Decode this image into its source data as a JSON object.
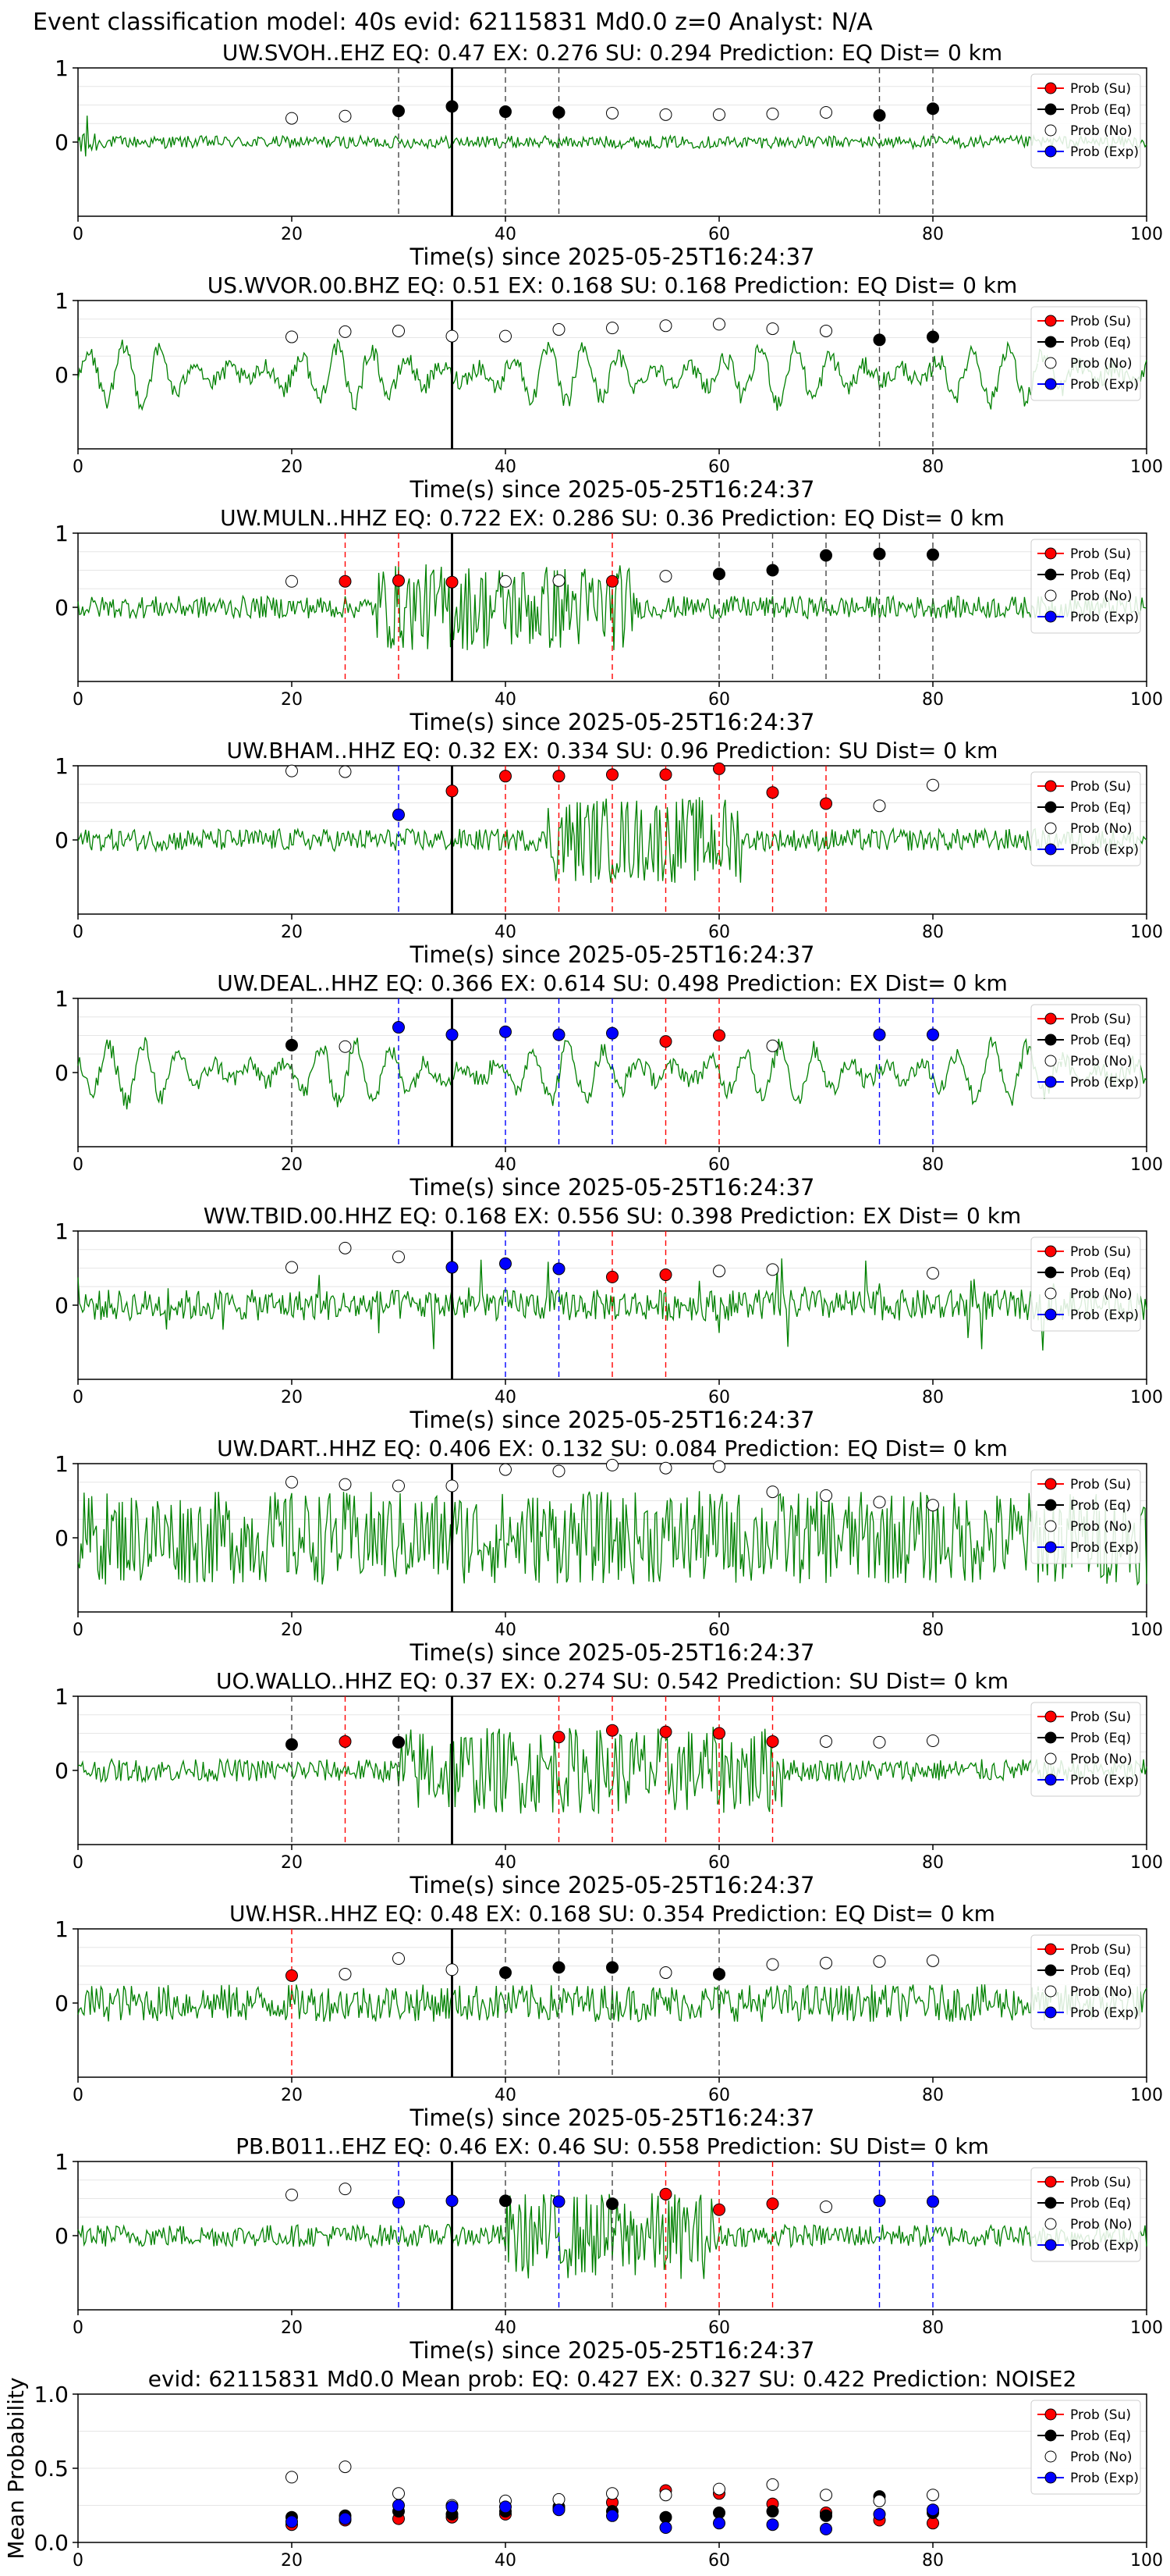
{
  "suptitle": "Event classification model: 40s evid: 62115831 Md0.0 z=0 Analyst: N/A",
  "colors": {
    "waveform": "#008000",
    "su": "#ff0000",
    "eq": "#000000",
    "no": "#ffffff",
    "exp": "#0000ff",
    "pick_line": "#000000"
  },
  "legend_labels": [
    "Prob (Su)",
    "Prob (Eq)",
    "Prob (No)",
    "Prob (Exp)"
  ],
  "chart_data": [
    {
      "type": "scatter",
      "title": "UW.SVOH..EHZ   EQ: 0.47   EX: 0.276   SU: 0.294   Prediction: EQ    Dist= 0 km",
      "xlabel": "Time(s) since 2025-05-25T16:24:37",
      "xlim": [
        0,
        100
      ],
      "ylim": [
        -1,
        1
      ],
      "xticks": [
        "0",
        "20",
        "40",
        "60",
        "80",
        "100"
      ],
      "yticks": [
        "1",
        "0"
      ],
      "pick_time": 35,
      "waveform": "low-amplitude noise with onset spike",
      "points": [
        {
          "x": 20,
          "y": 0.32,
          "class": "no"
        },
        {
          "x": 25,
          "y": 0.35,
          "class": "no"
        },
        {
          "x": 30,
          "y": 0.42,
          "class": "eq"
        },
        {
          "x": 35,
          "y": 0.48,
          "class": "eq"
        },
        {
          "x": 40,
          "y": 0.41,
          "class": "eq"
        },
        {
          "x": 45,
          "y": 0.4,
          "class": "eq"
        },
        {
          "x": 50,
          "y": 0.39,
          "class": "no"
        },
        {
          "x": 55,
          "y": 0.37,
          "class": "no"
        },
        {
          "x": 60,
          "y": 0.37,
          "class": "no"
        },
        {
          "x": 65,
          "y": 0.38,
          "class": "no"
        },
        {
          "x": 70,
          "y": 0.4,
          "class": "no"
        },
        {
          "x": 75,
          "y": 0.36,
          "class": "eq"
        },
        {
          "x": 80,
          "y": 0.45,
          "class": "eq"
        }
      ]
    },
    {
      "type": "scatter",
      "title": "US.WVOR.00.BHZ   EQ: 0.51   EX: 0.168   SU: 0.168   Prediction: EQ    Dist= 0 km",
      "xlabel": "Time(s) since 2025-05-25T16:24:37",
      "xlim": [
        0,
        100
      ],
      "ylim": [
        -1,
        1
      ],
      "xticks": [
        "0",
        "20",
        "40",
        "60",
        "80",
        "100"
      ],
      "yticks": [
        "1",
        "0"
      ],
      "pick_time": 35,
      "waveform": "large oscillating low-frequency signal",
      "points": [
        {
          "x": 20,
          "y": 0.51,
          "class": "no"
        },
        {
          "x": 25,
          "y": 0.58,
          "class": "no"
        },
        {
          "x": 30,
          "y": 0.59,
          "class": "no"
        },
        {
          "x": 35,
          "y": 0.52,
          "class": "no"
        },
        {
          "x": 40,
          "y": 0.52,
          "class": "no"
        },
        {
          "x": 45,
          "y": 0.61,
          "class": "no"
        },
        {
          "x": 50,
          "y": 0.63,
          "class": "no"
        },
        {
          "x": 55,
          "y": 0.66,
          "class": "no"
        },
        {
          "x": 60,
          "y": 0.68,
          "class": "no"
        },
        {
          "x": 65,
          "y": 0.62,
          "class": "no"
        },
        {
          "x": 70,
          "y": 0.59,
          "class": "no"
        },
        {
          "x": 75,
          "y": 0.47,
          "class": "eq"
        },
        {
          "x": 80,
          "y": 0.51,
          "class": "eq"
        }
      ]
    },
    {
      "type": "scatter",
      "title": "UW.MULN..HHZ   EQ: 0.722   EX: 0.286   SU: 0.36   Prediction: EQ    Dist= 0 km",
      "xlabel": "Time(s) since 2025-05-25T16:24:37",
      "xlim": [
        0,
        100
      ],
      "ylim": [
        -1,
        1
      ],
      "xticks": [
        "0",
        "20",
        "40",
        "60",
        "80",
        "100"
      ],
      "yticks": [
        "1",
        "0"
      ],
      "pick_time": 35,
      "waveform": "noise with strong burst around 30-50 s",
      "points": [
        {
          "x": 20,
          "y": 0.35,
          "class": "no"
        },
        {
          "x": 25,
          "y": 0.35,
          "class": "su"
        },
        {
          "x": 30,
          "y": 0.36,
          "class": "su"
        },
        {
          "x": 35,
          "y": 0.34,
          "class": "su"
        },
        {
          "x": 40,
          "y": 0.35,
          "class": "no"
        },
        {
          "x": 45,
          "y": 0.36,
          "class": "no"
        },
        {
          "x": 50,
          "y": 0.35,
          "class": "su"
        },
        {
          "x": 55,
          "y": 0.42,
          "class": "no"
        },
        {
          "x": 60,
          "y": 0.45,
          "class": "eq"
        },
        {
          "x": 65,
          "y": 0.5,
          "class": "eq"
        },
        {
          "x": 70,
          "y": 0.7,
          "class": "eq"
        },
        {
          "x": 75,
          "y": 0.72,
          "class": "eq"
        },
        {
          "x": 80,
          "y": 0.71,
          "class": "eq"
        }
      ]
    },
    {
      "type": "scatter",
      "title": "UW.BHAM..HHZ   EQ: 0.32   EX: 0.334   SU: 0.96   Prediction: SU    Dist= 0 km",
      "xlabel": "Time(s) since 2025-05-25T16:24:37",
      "xlim": [
        0,
        100
      ],
      "ylim": [
        -1,
        1
      ],
      "xticks": [
        "0",
        "20",
        "40",
        "60",
        "80",
        "100"
      ],
      "yticks": [
        "1",
        "0"
      ],
      "pick_time": 35,
      "waveform": "noise with emergent burst 45-60 s",
      "points": [
        {
          "x": 20,
          "y": 0.93,
          "class": "no"
        },
        {
          "x": 25,
          "y": 0.92,
          "class": "no"
        },
        {
          "x": 30,
          "y": 0.34,
          "class": "exp"
        },
        {
          "x": 35,
          "y": 0.66,
          "class": "su"
        },
        {
          "x": 40,
          "y": 0.86,
          "class": "su"
        },
        {
          "x": 45,
          "y": 0.86,
          "class": "su"
        },
        {
          "x": 50,
          "y": 0.88,
          "class": "su"
        },
        {
          "x": 55,
          "y": 0.88,
          "class": "su"
        },
        {
          "x": 60,
          "y": 0.96,
          "class": "su"
        },
        {
          "x": 65,
          "y": 0.64,
          "class": "su"
        },
        {
          "x": 70,
          "y": 0.49,
          "class": "su"
        },
        {
          "x": 75,
          "y": 0.46,
          "class": "no"
        },
        {
          "x": 80,
          "y": 0.74,
          "class": "no"
        }
      ]
    },
    {
      "type": "scatter",
      "title": "UW.DEAL..HHZ   EQ: 0.366   EX: 0.614   SU: 0.498   Prediction: EX    Dist= 0 km",
      "xlabel": "Time(s) since 2025-05-25T16:24:37",
      "xlim": [
        0,
        100
      ],
      "ylim": [
        -1,
        1
      ],
      "xticks": [
        "0",
        "20",
        "40",
        "60",
        "80",
        "100"
      ],
      "yticks": [
        "1",
        "0"
      ],
      "pick_time": 35,
      "waveform": "large oscillating low-frequency signal",
      "points": [
        {
          "x": 20,
          "y": 0.37,
          "class": "eq"
        },
        {
          "x": 25,
          "y": 0.35,
          "class": "no"
        },
        {
          "x": 30,
          "y": 0.61,
          "class": "exp"
        },
        {
          "x": 35,
          "y": 0.51,
          "class": "exp"
        },
        {
          "x": 40,
          "y": 0.55,
          "class": "exp"
        },
        {
          "x": 45,
          "y": 0.51,
          "class": "exp"
        },
        {
          "x": 50,
          "y": 0.53,
          "class": "exp"
        },
        {
          "x": 55,
          "y": 0.42,
          "class": "su"
        },
        {
          "x": 60,
          "y": 0.5,
          "class": "su"
        },
        {
          "x": 65,
          "y": 0.36,
          "class": "no"
        },
        {
          "x": 75,
          "y": 0.51,
          "class": "exp"
        },
        {
          "x": 80,
          "y": 0.51,
          "class": "exp"
        }
      ]
    },
    {
      "type": "scatter",
      "title": "WW.TBID.00.HHZ   EQ: 0.168   EX: 0.556   SU: 0.398   Prediction: EX    Dist= 0 km",
      "xlabel": "Time(s) since 2025-05-25T16:24:37",
      "xlim": [
        0,
        100
      ],
      "ylim": [
        -1,
        1
      ],
      "xticks": [
        "0",
        "20",
        "40",
        "60",
        "80",
        "100"
      ],
      "yticks": [
        "1",
        "0"
      ],
      "pick_time": 35,
      "waveform": "moderate noise with scattered bursts",
      "points": [
        {
          "x": 20,
          "y": 0.51,
          "class": "no"
        },
        {
          "x": 25,
          "y": 0.77,
          "class": "no"
        },
        {
          "x": 30,
          "y": 0.65,
          "class": "no"
        },
        {
          "x": 35,
          "y": 0.51,
          "class": "exp"
        },
        {
          "x": 40,
          "y": 0.56,
          "class": "exp"
        },
        {
          "x": 45,
          "y": 0.49,
          "class": "exp"
        },
        {
          "x": 50,
          "y": 0.38,
          "class": "su"
        },
        {
          "x": 55,
          "y": 0.41,
          "class": "su"
        },
        {
          "x": 60,
          "y": 0.46,
          "class": "no"
        },
        {
          "x": 65,
          "y": 0.48,
          "class": "no"
        },
        {
          "x": 80,
          "y": 0.43,
          "class": "no"
        }
      ]
    },
    {
      "type": "scatter",
      "title": "UW.DART..HHZ   EQ: 0.406   EX: 0.132   SU: 0.084   Prediction: EQ    Dist= 0 km",
      "xlabel": "Time(s) since 2025-05-25T16:24:37",
      "xlim": [
        0,
        100
      ],
      "ylim": [
        -1,
        1
      ],
      "xticks": [
        "0",
        "20",
        "40",
        "60",
        "80",
        "100"
      ],
      "yticks": [
        "1",
        "0"
      ],
      "pick_time": 35,
      "waveform": "dense high-amplitude noise",
      "points": [
        {
          "x": 20,
          "y": 0.75,
          "class": "no"
        },
        {
          "x": 25,
          "y": 0.72,
          "class": "no"
        },
        {
          "x": 30,
          "y": 0.7,
          "class": "no"
        },
        {
          "x": 35,
          "y": 0.7,
          "class": "no"
        },
        {
          "x": 40,
          "y": 0.92,
          "class": "no"
        },
        {
          "x": 45,
          "y": 0.9,
          "class": "no"
        },
        {
          "x": 50,
          "y": 0.98,
          "class": "no"
        },
        {
          "x": 55,
          "y": 0.94,
          "class": "no"
        },
        {
          "x": 60,
          "y": 0.96,
          "class": "no"
        },
        {
          "x": 65,
          "y": 0.62,
          "class": "no"
        },
        {
          "x": 70,
          "y": 0.57,
          "class": "no"
        },
        {
          "x": 75,
          "y": 0.48,
          "class": "no"
        },
        {
          "x": 80,
          "y": 0.44,
          "class": "no"
        }
      ]
    },
    {
      "type": "scatter",
      "title": "UO.WALLO..HHZ   EQ: 0.37   EX: 0.274   SU: 0.542   Prediction: SU    Dist= 0 km",
      "xlabel": "Time(s) since 2025-05-25T16:24:37",
      "xlim": [
        0,
        100
      ],
      "ylim": [
        -1,
        1
      ],
      "xticks": [
        "0",
        "20",
        "40",
        "60",
        "80",
        "100"
      ],
      "yticks": [
        "1",
        "0"
      ],
      "pick_time": 35,
      "waveform": "low noise then strong burst 30-65 s",
      "points": [
        {
          "x": 20,
          "y": 0.35,
          "class": "eq"
        },
        {
          "x": 25,
          "y": 0.39,
          "class": "su"
        },
        {
          "x": 30,
          "y": 0.38,
          "class": "eq"
        },
        {
          "x": 45,
          "y": 0.45,
          "class": "su"
        },
        {
          "x": 50,
          "y": 0.54,
          "class": "su"
        },
        {
          "x": 55,
          "y": 0.52,
          "class": "su"
        },
        {
          "x": 60,
          "y": 0.5,
          "class": "su"
        },
        {
          "x": 65,
          "y": 0.39,
          "class": "su"
        },
        {
          "x": 70,
          "y": 0.39,
          "class": "no"
        },
        {
          "x": 75,
          "y": 0.38,
          "class": "no"
        },
        {
          "x": 80,
          "y": 0.4,
          "class": "no"
        }
      ]
    },
    {
      "type": "scatter",
      "title": "UW.HSR..HHZ   EQ: 0.48   EX: 0.168   SU: 0.354   Prediction: EQ    Dist= 0 km",
      "xlabel": "Time(s) since 2025-05-25T16:24:37",
      "xlim": [
        0,
        100
      ],
      "ylim": [
        -1,
        1
      ],
      "xticks": [
        "0",
        "20",
        "40",
        "60",
        "80",
        "100"
      ],
      "yticks": [
        "1",
        "0"
      ],
      "pick_time": 35,
      "waveform": "moderate noise",
      "points": [
        {
          "x": 20,
          "y": 0.37,
          "class": "su"
        },
        {
          "x": 25,
          "y": 0.39,
          "class": "no"
        },
        {
          "x": 30,
          "y": 0.6,
          "class": "no"
        },
        {
          "x": 35,
          "y": 0.45,
          "class": "no"
        },
        {
          "x": 40,
          "y": 0.41,
          "class": "eq"
        },
        {
          "x": 45,
          "y": 0.48,
          "class": "eq"
        },
        {
          "x": 50,
          "y": 0.48,
          "class": "eq"
        },
        {
          "x": 55,
          "y": 0.41,
          "class": "no"
        },
        {
          "x": 60,
          "y": 0.39,
          "class": "eq"
        },
        {
          "x": 65,
          "y": 0.52,
          "class": "no"
        },
        {
          "x": 70,
          "y": 0.54,
          "class": "no"
        },
        {
          "x": 75,
          "y": 0.56,
          "class": "no"
        },
        {
          "x": 80,
          "y": 0.57,
          "class": "no"
        }
      ]
    },
    {
      "type": "scatter",
      "title": "PB.B011..EHZ   EQ: 0.46   EX: 0.46   SU: 0.558   Prediction: SU    Dist= 0 km",
      "xlabel": "Time(s) since 2025-05-25T16:24:37",
      "xlim": [
        0,
        100
      ],
      "ylim": [
        -1,
        1
      ],
      "xticks": [
        "0",
        "20",
        "40",
        "60",
        "80",
        "100"
      ],
      "yticks": [
        "1",
        "0"
      ],
      "pick_time": 35,
      "waveform": "moderate noise with burst 40-60 s",
      "points": [
        {
          "x": 20,
          "y": 0.55,
          "class": "no"
        },
        {
          "x": 25,
          "y": 0.63,
          "class": "no"
        },
        {
          "x": 30,
          "y": 0.45,
          "class": "exp"
        },
        {
          "x": 35,
          "y": 0.47,
          "class": "exp"
        },
        {
          "x": 40,
          "y": 0.47,
          "class": "eq"
        },
        {
          "x": 45,
          "y": 0.46,
          "class": "exp"
        },
        {
          "x": 50,
          "y": 0.43,
          "class": "eq"
        },
        {
          "x": 55,
          "y": 0.56,
          "class": "su"
        },
        {
          "x": 60,
          "y": 0.35,
          "class": "su"
        },
        {
          "x": 65,
          "y": 0.43,
          "class": "su"
        },
        {
          "x": 70,
          "y": 0.39,
          "class": "no"
        },
        {
          "x": 75,
          "y": 0.47,
          "class": "exp"
        },
        {
          "x": 80,
          "y": 0.46,
          "class": "exp"
        }
      ]
    },
    {
      "type": "scatter",
      "title": "evid: 62115831  Md0.0   Mean prob:   EQ: 0.427   EX: 0.327   SU: 0.422   Prediction: NOISE2",
      "xlabel": "",
      "ylabel": "Mean Probability",
      "xlim": [
        0,
        100
      ],
      "ylim": [
        0,
        1
      ],
      "xticks": [
        "0",
        "20",
        "40",
        "60",
        "80",
        "100"
      ],
      "yticks": [
        "0.0",
        "0.5",
        "1.0"
      ],
      "series": [
        {
          "class": "su",
          "x": [
            20,
            25,
            30,
            35,
            40,
            45,
            50,
            55,
            60,
            65,
            70,
            75,
            80
          ],
          "values": [
            0.12,
            0.15,
            0.16,
            0.17,
            0.19,
            0.23,
            0.27,
            0.35,
            0.33,
            0.26,
            0.2,
            0.15,
            0.13
          ]
        },
        {
          "class": "eq",
          "x": [
            20,
            25,
            30,
            35,
            40,
            45,
            50,
            55,
            60,
            65,
            70,
            75,
            80
          ],
          "values": [
            0.17,
            0.18,
            0.21,
            0.19,
            0.21,
            0.24,
            0.21,
            0.17,
            0.2,
            0.21,
            0.18,
            0.31,
            0.2
          ]
        },
        {
          "class": "no",
          "x": [
            20,
            25,
            30,
            35,
            40,
            45,
            50,
            55,
            60,
            65,
            70,
            75,
            80
          ],
          "values": [
            0.44,
            0.51,
            0.33,
            0.25,
            0.28,
            0.29,
            0.33,
            0.32,
            0.36,
            0.39,
            0.32,
            0.28,
            0.32
          ]
        },
        {
          "class": "exp",
          "x": [
            20,
            25,
            30,
            35,
            40,
            45,
            50,
            55,
            60,
            65,
            70,
            75,
            80
          ],
          "values": [
            0.14,
            0.16,
            0.25,
            0.24,
            0.24,
            0.22,
            0.18,
            0.1,
            0.13,
            0.12,
            0.09,
            0.19,
            0.22
          ]
        }
      ]
    }
  ]
}
